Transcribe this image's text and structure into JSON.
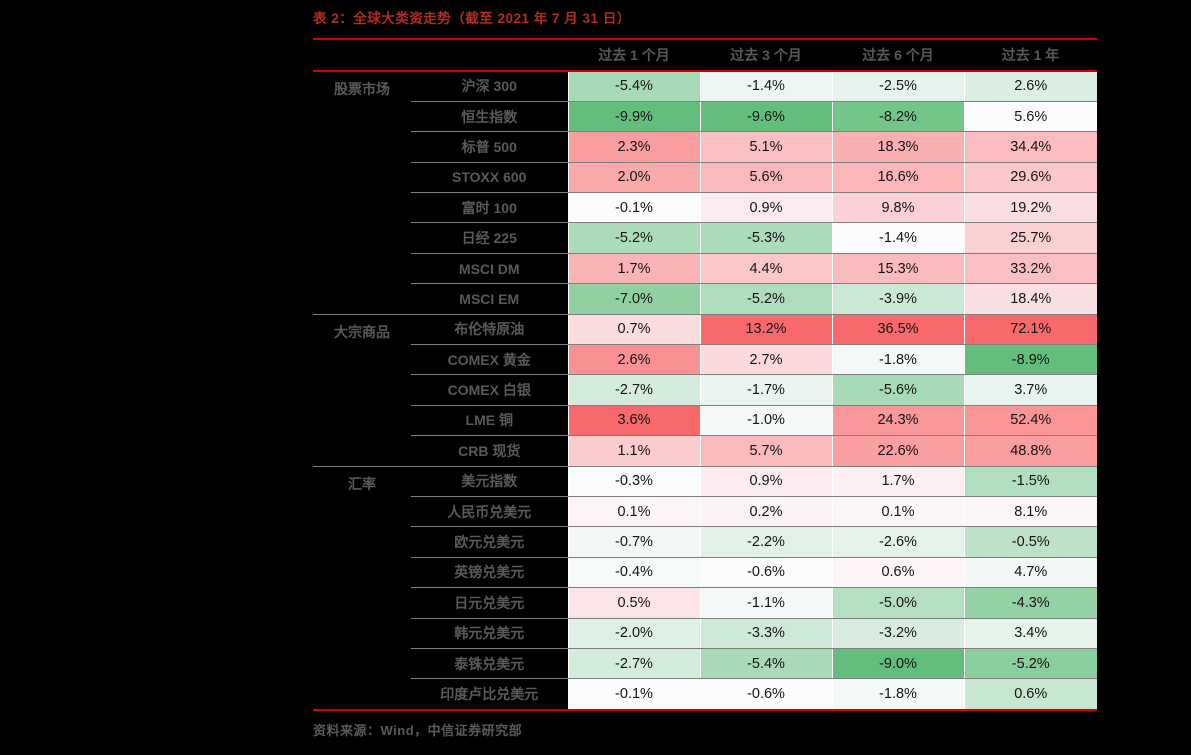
{
  "title": "表 2：全球大类资走势（截至 2021 年 7 月 31 日）",
  "source": "资料来源：Wind，中信证券研究部",
  "colors": {
    "background": "#000000",
    "title_red": "#b02c24",
    "rule_red": "#d40000",
    "label_gray": "#595959",
    "value_text": "#141414",
    "row_line": "#7f7f7f",
    "col_line": "#ffffff",
    "heatmap_min_green": "#63BE7B",
    "heatmap_mid_white": "#FCFCFF",
    "heatmap_max_red": "#F8696B"
  },
  "chart_data": {
    "type": "heatmap",
    "title": "表 2：全球大类资走势（截至 2021 年 7 月 31 日）",
    "value_unit": "%",
    "color_scale": "per-column 3-color scale: min=green #63BE7B, median=white #FCFCFF, max=red #F8696B",
    "col_headers": [
      "过去 1 个月",
      "过去 3 个月",
      "过去 6 个月",
      "过去 1 年"
    ],
    "sections": [
      {
        "category": "股票市场",
        "rows": [
          {
            "name": "沪深 300",
            "values": [
              -5.4,
              -1.4,
              -2.5,
              2.6
            ]
          },
          {
            "name": "恒生指数",
            "values": [
              -9.9,
              -9.6,
              -8.2,
              5.6
            ]
          },
          {
            "name": "标普 500",
            "values": [
              2.3,
              5.1,
              18.3,
              34.4
            ]
          },
          {
            "name": "STOXX 600",
            "values": [
              2.0,
              5.6,
              16.6,
              29.6
            ]
          },
          {
            "name": "富时 100",
            "values": [
              -0.1,
              0.9,
              9.8,
              19.2
            ]
          },
          {
            "name": "日经 225",
            "values": [
              -5.2,
              -5.3,
              -1.4,
              25.7
            ]
          },
          {
            "name": "MSCI DM",
            "values": [
              1.7,
              4.4,
              15.3,
              33.2
            ]
          },
          {
            "name": "MSCI EM",
            "values": [
              -7.0,
              -5.2,
              -3.9,
              18.4
            ]
          }
        ]
      },
      {
        "category": "大宗商品",
        "rows": [
          {
            "name": "布伦特原油",
            "values": [
              0.7,
              13.2,
              36.5,
              72.1
            ]
          },
          {
            "name": "COMEX 黄金",
            "values": [
              2.6,
              2.7,
              -1.8,
              -8.9
            ]
          },
          {
            "name": "COMEX 白银",
            "values": [
              -2.7,
              -1.7,
              -5.6,
              3.7
            ]
          },
          {
            "name": "LME 铜",
            "values": [
              3.6,
              -1.0,
              24.3,
              52.4
            ]
          },
          {
            "name": "CRB 现货",
            "values": [
              1.1,
              5.7,
              22.6,
              48.8
            ]
          }
        ]
      },
      {
        "category": "汇率",
        "rows": [
          {
            "name": "美元指数",
            "values": [
              -0.3,
              0.9,
              1.7,
              -1.5
            ]
          },
          {
            "name": "人民币兑美元",
            "values": [
              0.1,
              0.2,
              0.1,
              8.1
            ]
          },
          {
            "name": "欧元兑美元",
            "values": [
              -0.7,
              -2.2,
              -2.6,
              -0.5
            ]
          },
          {
            "name": "英镑兑美元",
            "values": [
              -0.4,
              -0.6,
              0.6,
              4.7
            ]
          },
          {
            "name": "日元兑美元",
            "values": [
              0.5,
              -1.1,
              -5.0,
              -4.3
            ]
          },
          {
            "name": "韩元兑美元",
            "values": [
              -2.0,
              -3.3,
              -3.2,
              3.4
            ]
          },
          {
            "name": "泰铢兑美元",
            "values": [
              -2.7,
              -5.4,
              -9.0,
              -5.2
            ]
          },
          {
            "name": "印度卢比兑美元",
            "values": [
              -0.1,
              -0.6,
              -1.8,
              0.6
            ]
          }
        ]
      }
    ]
  }
}
